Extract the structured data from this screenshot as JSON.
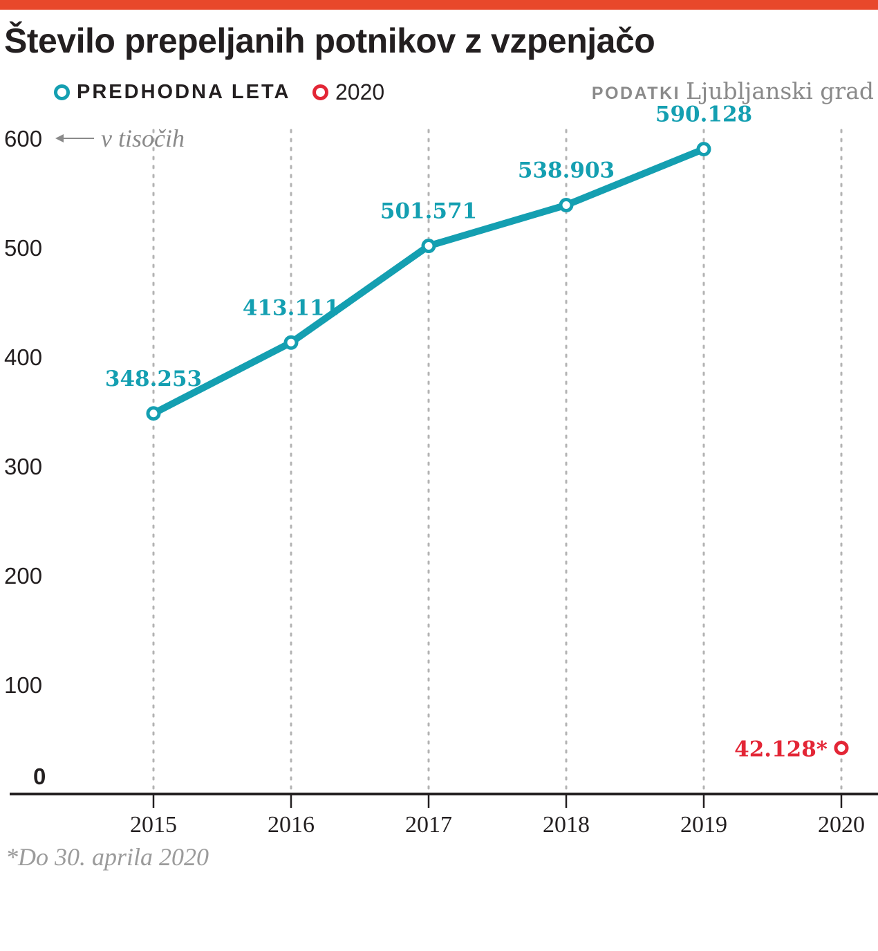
{
  "header": {
    "title": "Število prepeljanih potnikov z vzpenjačo"
  },
  "legend": {
    "previous_years": "PREDHODNA LETA",
    "current_year": "2020"
  },
  "source": {
    "label": "PODATKI",
    "name": "Ljubljanski grad"
  },
  "footnote": "*Do 30. aprila 2020",
  "colors": {
    "accent_bar": "#e8482b",
    "series_previous": "#149fb1",
    "series_2020": "#e32636",
    "grid": "#b3b3b3",
    "axis": "#231f20",
    "muted_text": "#8a8a8a"
  },
  "chart_data": {
    "type": "line",
    "title": "Število prepeljanih potnikov z vzpenjačo",
    "unit_note": "v tisočih",
    "ylim": [
      0,
      600
    ],
    "yticks": [
      {
        "value": 0,
        "label": "0"
      },
      {
        "value": 100,
        "label": "100"
      },
      {
        "value": 200,
        "label": "200"
      },
      {
        "value": 300,
        "label": "300"
      },
      {
        "value": 400,
        "label": "400"
      },
      {
        "value": 500,
        "label": "500"
      },
      {
        "value": 600,
        "label": "600"
      }
    ],
    "categories": [
      "2015",
      "2016",
      "2017",
      "2018",
      "2019",
      "2020"
    ],
    "grid": "vertical-dotted",
    "series": [
      {
        "name": "PREDHODNA LETA",
        "color": "#149fb1",
        "points": [
          {
            "x": "2015",
            "y": 348.253,
            "label": "348.253"
          },
          {
            "x": "2016",
            "y": 413.111,
            "label": "413.111"
          },
          {
            "x": "2017",
            "y": 501.571,
            "label": "501.571"
          },
          {
            "x": "2018",
            "y": 538.903,
            "label": "538.903"
          },
          {
            "x": "2019",
            "y": 590.128,
            "label": "590.128"
          }
        ]
      },
      {
        "name": "2020",
        "color": "#e32636",
        "points": [
          {
            "x": "2020",
            "y": 42.128,
            "label": "42.128*"
          }
        ]
      }
    ]
  }
}
